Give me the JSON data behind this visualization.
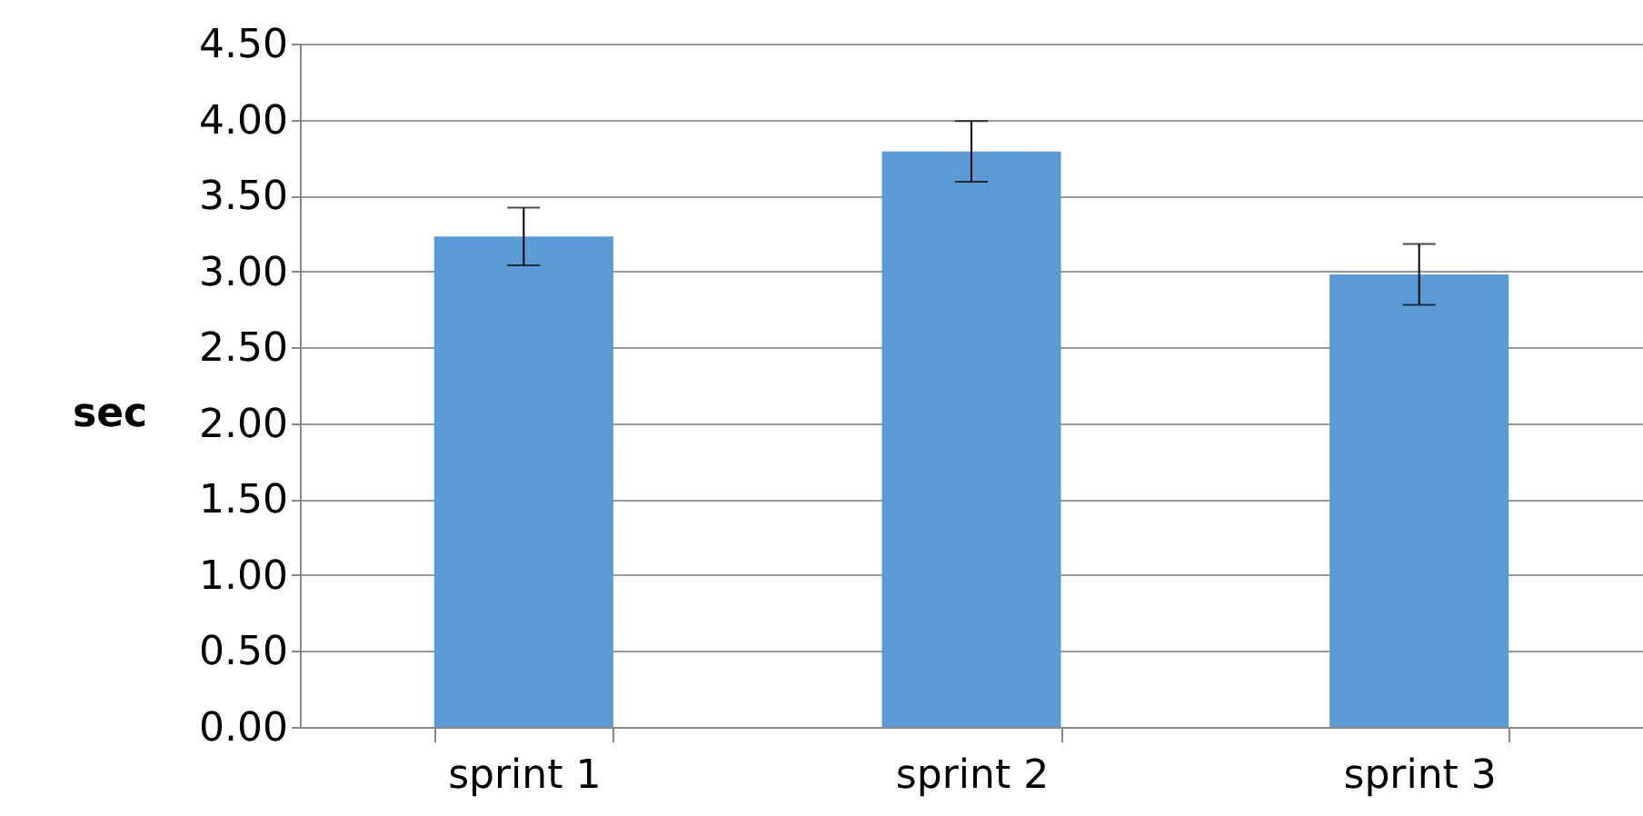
{
  "chart_data": {
    "type": "bar",
    "ylabel": "sec",
    "categories": [
      "sprint 1",
      "sprint 2",
      "sprint 3"
    ],
    "series": [
      {
        "color": "#5b9bd5",
        "values": [
          3.23,
          3.79,
          2.98
        ],
        "errors": [
          0.19,
          0.2,
          0.2
        ]
      }
    ],
    "ylim": [
      0,
      4.5
    ],
    "yticks": [
      {
        "value": 0,
        "label": "0.00"
      },
      {
        "value": 0.5,
        "label": "0.50"
      },
      {
        "value": 1,
        "label": "1.00"
      },
      {
        "value": 1.5,
        "label": "1.50"
      },
      {
        "value": 2,
        "label": "2.00"
      },
      {
        "value": 2.5,
        "label": "2.50"
      },
      {
        "value": 3,
        "label": "3.00"
      },
      {
        "value": 3.5,
        "label": "3.50"
      },
      {
        "value": 4,
        "label": "4.00"
      },
      {
        "value": 4.5,
        "label": "4.50"
      }
    ],
    "grid": "y",
    "legend": false
  }
}
